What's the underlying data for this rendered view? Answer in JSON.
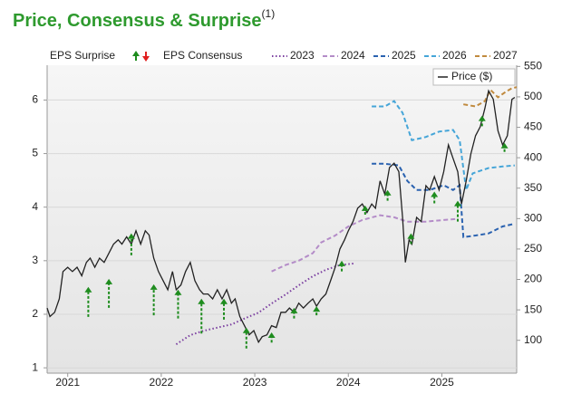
{
  "chart_data": {
    "type": "line",
    "title": "Price, Consensus & Surprise",
    "title_note": "(1)",
    "consensus_label": "EPS Consensus",
    "xlim": [
      2020.78,
      2025.8
    ],
    "xticks": [
      2021,
      2022,
      2023,
      2024,
      2025
    ],
    "ylim": [
      0.9,
      6.65
    ],
    "yticks": [
      1,
      2,
      3,
      4,
      5,
      6
    ],
    "y2lim": [
      46,
      552
    ],
    "y2ticks": [
      100,
      150,
      200,
      250,
      300,
      350,
      400,
      450,
      500,
      550
    ],
    "grid": true,
    "surprise": {
      "name": "EPS Surprise",
      "color": "#1e8c1e",
      "down_color": "#e02020",
      "x": [
        2021.22,
        2021.44,
        2021.68,
        2021.92,
        2022.18,
        2022.43,
        2022.67,
        2022.91,
        2023.18,
        2023.42,
        2023.66,
        2023.93,
        2024.18,
        2024.42,
        2024.67,
        2024.92,
        2025.17,
        2025.43,
        2025.67
      ],
      "from": [
        1.95,
        2.12,
        3.1,
        1.98,
        1.92,
        1.64,
        1.9,
        1.36,
        1.47,
        1.92,
        1.98,
        2.8,
        3.86,
        4.12,
        3.31,
        4.07,
        3.73,
        5.51,
        5.03
      ],
      "values": [
        2.51,
        2.66,
        3.51,
        2.56,
        2.46,
        2.29,
        2.29,
        1.75,
        1.66,
        2.12,
        2.15,
        3.0,
        4.03,
        4.32,
        3.51,
        4.29,
        4.12,
        5.71,
        5.2
      ]
    },
    "series": [
      {
        "name": "2023",
        "color": "#7b3fa0",
        "style": "dotted",
        "x": [
          2022.16,
          2022.31,
          2022.45,
          2022.6,
          2022.75,
          2022.89,
          2023.04,
          2023.18,
          2023.33,
          2023.47,
          2023.62,
          2023.76,
          2023.91,
          2024.07
        ],
        "values": [
          1.44,
          1.61,
          1.69,
          1.75,
          1.81,
          1.92,
          2.03,
          2.2,
          2.37,
          2.54,
          2.71,
          2.83,
          2.92,
          2.95
        ]
      },
      {
        "name": "2024",
        "color": "#b48cc8",
        "style": "dashed",
        "x": [
          2023.18,
          2023.33,
          2023.47,
          2023.62,
          2023.71,
          2023.86,
          2024.0,
          2024.15,
          2024.34,
          2024.49,
          2024.63,
          2024.83,
          2025.02,
          2025.17
        ],
        "values": [
          2.8,
          2.92,
          3.0,
          3.14,
          3.34,
          3.47,
          3.64,
          3.76,
          3.85,
          3.81,
          3.73,
          3.73,
          3.76,
          3.78
        ]
      },
      {
        "name": "2025",
        "color": "#2a62b0",
        "style": "dashed",
        "x": [
          2024.25,
          2024.39,
          2024.54,
          2024.63,
          2024.73,
          2024.87,
          2025.02,
          2025.12,
          2025.19,
          2025.23,
          2025.36,
          2025.5,
          2025.65,
          2025.78
        ],
        "values": [
          4.81,
          4.81,
          4.78,
          4.49,
          4.32,
          4.32,
          4.41,
          4.32,
          4.41,
          3.44,
          3.47,
          3.51,
          3.64,
          3.69
        ]
      },
      {
        "name": "2026",
        "color": "#45a5d8",
        "style": "dashed",
        "x": [
          2024.25,
          2024.39,
          2024.49,
          2024.58,
          2024.68,
          2024.83,
          2024.97,
          2025.12,
          2025.19,
          2025.26,
          2025.33,
          2025.5,
          2025.65,
          2025.78
        ],
        "values": [
          5.88,
          5.88,
          5.98,
          5.76,
          5.25,
          5.31,
          5.41,
          5.44,
          5.25,
          4.32,
          4.63,
          4.73,
          4.76,
          4.78
        ]
      },
      {
        "name": "2027",
        "color": "#c08a3e",
        "style": "dashed",
        "x": [
          2025.23,
          2025.36,
          2025.46,
          2025.52,
          2025.6,
          2025.68,
          2025.75,
          2025.8
        ],
        "values": [
          5.92,
          5.88,
          5.98,
          6.19,
          6.05,
          6.15,
          6.22,
          6.24
        ]
      },
      {
        "name": "Price ($)",
        "color": "#222222",
        "style": "solid",
        "axis": "y2",
        "x": [
          2020.78,
          2020.81,
          2020.86,
          2020.91,
          2020.95,
          2021.0,
          2021.05,
          2021.1,
          2021.15,
          2021.2,
          2021.24,
          2021.29,
          2021.34,
          2021.39,
          2021.44,
          2021.49,
          2021.54,
          2021.58,
          2021.63,
          2021.68,
          2021.73,
          2021.78,
          2021.83,
          2021.87,
          2021.92,
          2021.97,
          2022.02,
          2022.07,
          2022.12,
          2022.16,
          2022.21,
          2022.26,
          2022.31,
          2022.36,
          2022.41,
          2022.45,
          2022.5,
          2022.55,
          2022.6,
          2022.65,
          2022.7,
          2022.75,
          2022.79,
          2022.84,
          2022.89,
          2022.94,
          2022.99,
          2023.04,
          2023.08,
          2023.13,
          2023.18,
          2023.23,
          2023.28,
          2023.33,
          2023.37,
          2023.42,
          2023.47,
          2023.52,
          2023.57,
          2023.62,
          2023.66,
          2023.71,
          2023.76,
          2023.81,
          2023.86,
          2023.91,
          2023.96,
          2024.0,
          2024.05,
          2024.1,
          2024.15,
          2024.2,
          2024.25,
          2024.29,
          2024.34,
          2024.39,
          2024.44,
          2024.49,
          2024.54,
          2024.58,
          2024.61,
          2024.65,
          2024.68,
          2024.73,
          2024.78,
          2024.83,
          2024.87,
          2024.92,
          2024.97,
          2025.02,
          2025.07,
          2025.12,
          2025.17,
          2025.21,
          2025.26,
          2025.31,
          2025.36,
          2025.41,
          2025.46,
          2025.5,
          2025.55,
          2025.6,
          2025.65,
          2025.7,
          2025.75,
          2025.78
        ],
        "values": [
          153,
          139,
          146,
          168,
          213,
          220,
          213,
          220,
          206,
          228,
          235,
          220,
          235,
          228,
          243,
          258,
          265,
          258,
          270,
          258,
          280,
          258,
          280,
          273,
          235,
          213,
          198,
          183,
          213,
          183,
          191,
          213,
          228,
          198,
          183,
          176,
          176,
          168,
          183,
          168,
          183,
          161,
          168,
          139,
          124,
          109,
          116,
          97,
          106,
          109,
          124,
          121,
          146,
          146,
          153,
          146,
          161,
          153,
          161,
          168,
          156,
          168,
          176,
          198,
          220,
          250,
          265,
          280,
          295,
          317,
          324,
          310,
          324,
          317,
          362,
          340,
          384,
          391,
          377,
          302,
          228,
          265,
          258,
          302,
          295,
          354,
          347,
          369,
          347,
          377,
          421,
          399,
          377,
          324,
          362,
          406,
          436,
          451,
          481,
          510,
          496,
          444,
          421,
          436,
          496,
          499
        ]
      }
    ]
  }
}
